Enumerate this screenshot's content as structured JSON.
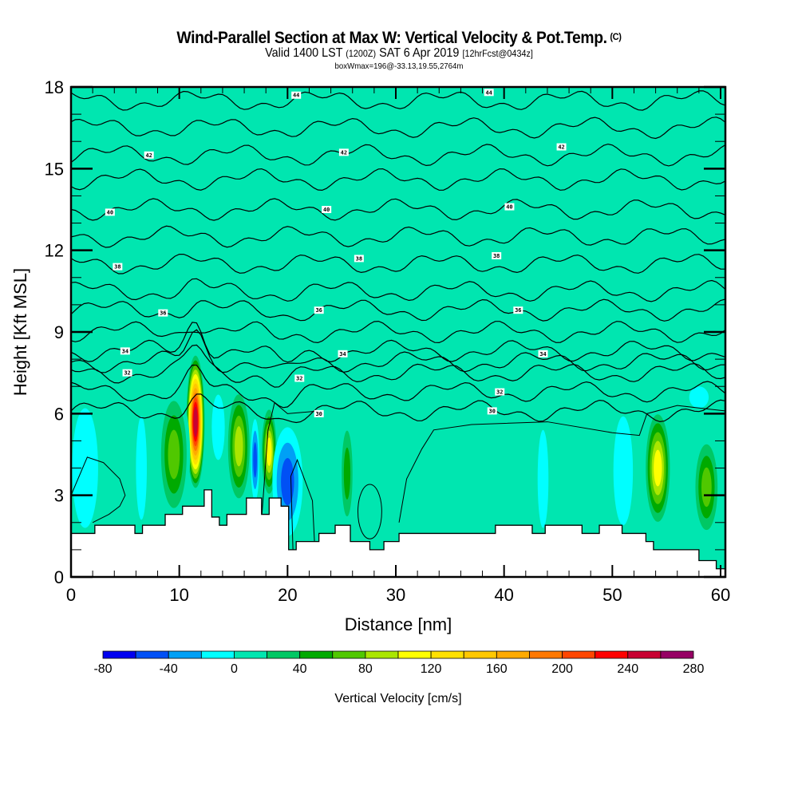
{
  "header": {
    "title": "Wind-Parallel Section at Max W: Vertical Velocity & Pot.Temp.",
    "copyright": "(C)",
    "valid_prefix": "Valid 1400 LST",
    "valid_utc": "(1200Z)",
    "valid_date": "SAT 6 Apr 2019",
    "forecast": "[12hrFcst@0434z]",
    "box_info": "boxWmax=196@-33.13,19.55,2764m"
  },
  "chart_data": {
    "type": "heatmap",
    "title": "Wind-Parallel Section at Max W: Vertical Velocity & Pot.Temp.",
    "xlabel": "Distance [nm]",
    "ylabel": "Height [Kft MSL]",
    "xlim": [
      0,
      60.4
    ],
    "ylim": [
      0,
      18
    ],
    "x_ticks": [
      0,
      10,
      20,
      30,
      40,
      50,
      60
    ],
    "x_tick_labels": [
      "0",
      "10",
      "20",
      "30",
      "40",
      "50",
      "60"
    ],
    "y_ticks": [
      0,
      3,
      6,
      9,
      12,
      15,
      18
    ],
    "y_tick_labels": [
      "0",
      "3",
      "6",
      "9",
      "12",
      "15",
      "18"
    ],
    "x_minor_step": 2,
    "y_minor_step": 1,
    "colorbar": {
      "title": "Vertical Velocity [cm/s]",
      "levels": [
        -80,
        -60,
        -40,
        -20,
        0,
        20,
        40,
        60,
        80,
        100,
        120,
        140,
        160,
        180,
        200,
        220,
        240,
        260,
        280
      ],
      "tick_labels": [
        "-80",
        "-40",
        "0",
        "40",
        "80",
        "120",
        "160",
        "200",
        "240",
        "280"
      ],
      "colors": [
        "#0000f0",
        "#0050f5",
        "#00a0f5",
        "#00ffff",
        "#00e6b0",
        "#00c864",
        "#00aa00",
        "#50c800",
        "#aae600",
        "#ffff00",
        "#ffe100",
        "#ffc800",
        "#ffaa00",
        "#ff7800",
        "#ff4600",
        "#ff0000",
        "#c80032",
        "#960064"
      ]
    },
    "background_velocity_cm_s": 0,
    "velocity_cells": [
      {
        "x": 11.5,
        "z": 5.7,
        "rx": 0.9,
        "rz": 2.6,
        "peak": 250
      },
      {
        "x": 9.5,
        "z": 4.5,
        "rx": 1.5,
        "rz": 2.5,
        "peak": 70
      },
      {
        "x": 15.5,
        "z": 4.8,
        "rx": 1.2,
        "rz": 2.3,
        "peak": 90
      },
      {
        "x": 18.3,
        "z": 4.6,
        "rx": 0.8,
        "rz": 1.8,
        "peak": 110
      },
      {
        "x": 54.2,
        "z": 4.0,
        "rx": 1.3,
        "rz": 2.3,
        "peak": 120
      },
      {
        "x": 58.7,
        "z": 3.3,
        "rx": 1.3,
        "rz": 2.0,
        "peak": 80
      },
      {
        "x": 25.5,
        "z": 3.8,
        "rx": 0.7,
        "rz": 2.2,
        "peak": 45
      },
      {
        "x": 1.3,
        "z": 4.0,
        "rx": 1.2,
        "rz": 2.2,
        "peak": -30
      },
      {
        "x": 20.0,
        "z": 3.5,
        "rx": 1.4,
        "rz": 2.0,
        "peak": -70
      },
      {
        "x": 17.0,
        "z": 4.3,
        "rx": 0.4,
        "rz": 1.5,
        "peak": -75
      },
      {
        "x": 13.6,
        "z": 5.5,
        "rx": 0.6,
        "rz": 1.2,
        "peak": -25
      },
      {
        "x": 6.5,
        "z": 4.0,
        "rx": 0.5,
        "rz": 1.9,
        "peak": -25
      },
      {
        "x": 51.0,
        "z": 3.9,
        "rx": 0.9,
        "rz": 2.0,
        "peak": -30
      },
      {
        "x": 43.6,
        "z": 3.6,
        "rx": 0.5,
        "rz": 1.8,
        "peak": -30
      },
      {
        "x": 58.0,
        "z": 6.6,
        "rx": 0.9,
        "rz": 0.4,
        "peak": -25
      }
    ],
    "theta_contours": {
      "units": "deg C",
      "levels": [
        30,
        31,
        32,
        33,
        34,
        35,
        36,
        37,
        38,
        39,
        40,
        41,
        42,
        43,
        44
      ],
      "base_heights_kft": [
        6.1,
        6.8,
        7.5,
        7.9,
        8.3,
        9.0,
        9.8,
        10.5,
        11.5,
        12.5,
        13.5,
        14.6,
        15.5,
        16.5,
        17.5
      ],
      "labels": [
        {
          "text": "44",
          "x": 20.8,
          "z": 17.7
        },
        {
          "text": "44",
          "x": 38.6,
          "z": 17.8
        },
        {
          "text": "42",
          "x": 7.2,
          "z": 15.5
        },
        {
          "text": "42",
          "x": 25.2,
          "z": 15.6
        },
        {
          "text": "42",
          "x": 45.3,
          "z": 15.8
        },
        {
          "text": "40",
          "x": 3.6,
          "z": 13.4
        },
        {
          "text": "40",
          "x": 23.6,
          "z": 13.5
        },
        {
          "text": "40",
          "x": 40.5,
          "z": 13.6
        },
        {
          "text": "38",
          "x": 4.3,
          "z": 11.4
        },
        {
          "text": "38",
          "x": 26.6,
          "z": 11.7
        },
        {
          "text": "38",
          "x": 39.3,
          "z": 11.8
        },
        {
          "text": "36",
          "x": 8.5,
          "z": 9.7
        },
        {
          "text": "36",
          "x": 22.9,
          "z": 9.8
        },
        {
          "text": "36",
          "x": 41.3,
          "z": 9.8
        },
        {
          "text": "34",
          "x": 5.0,
          "z": 8.3
        },
        {
          "text": "34",
          "x": 25.1,
          "z": 8.2
        },
        {
          "text": "34",
          "x": 43.6,
          "z": 8.2
        },
        {
          "text": "32",
          "x": 5.2,
          "z": 7.5
        },
        {
          "text": "32",
          "x": 21.1,
          "z": 7.3
        },
        {
          "text": "32",
          "x": 39.6,
          "z": 6.8
        },
        {
          "text": "30",
          "x": 22.9,
          "z": 6.0
        },
        {
          "text": "30",
          "x": 38.9,
          "z": 6.1
        }
      ]
    },
    "terrain_kft": {
      "x": [
        0,
        2.2,
        4.0,
        5.9,
        6.6,
        7.3,
        8.7,
        10.3,
        12.3,
        13.0,
        13.7,
        14.4,
        16.2,
        17.6,
        18.3,
        19.4,
        20.1,
        20.8,
        21.5,
        22.9,
        24.4,
        25.8,
        27.6,
        28.9,
        30.3,
        39.2,
        42.6,
        43.8,
        47.2,
        48.8,
        50.9,
        53.1,
        53.8,
        54.5,
        58.0,
        59.6,
        60.4
      ],
      "z": [
        1.6,
        1.9,
        1.9,
        1.6,
        1.9,
        1.9,
        2.3,
        2.6,
        3.2,
        2.2,
        1.9,
        2.3,
        2.9,
        2.3,
        2.9,
        2.6,
        1.0,
        1.3,
        1.3,
        1.6,
        1.9,
        1.3,
        1.0,
        1.3,
        1.6,
        1.9,
        1.6,
        1.9,
        1.6,
        1.9,
        1.6,
        1.3,
        1.0,
        1.0,
        0.6,
        0.3,
        0.3
      ]
    }
  }
}
